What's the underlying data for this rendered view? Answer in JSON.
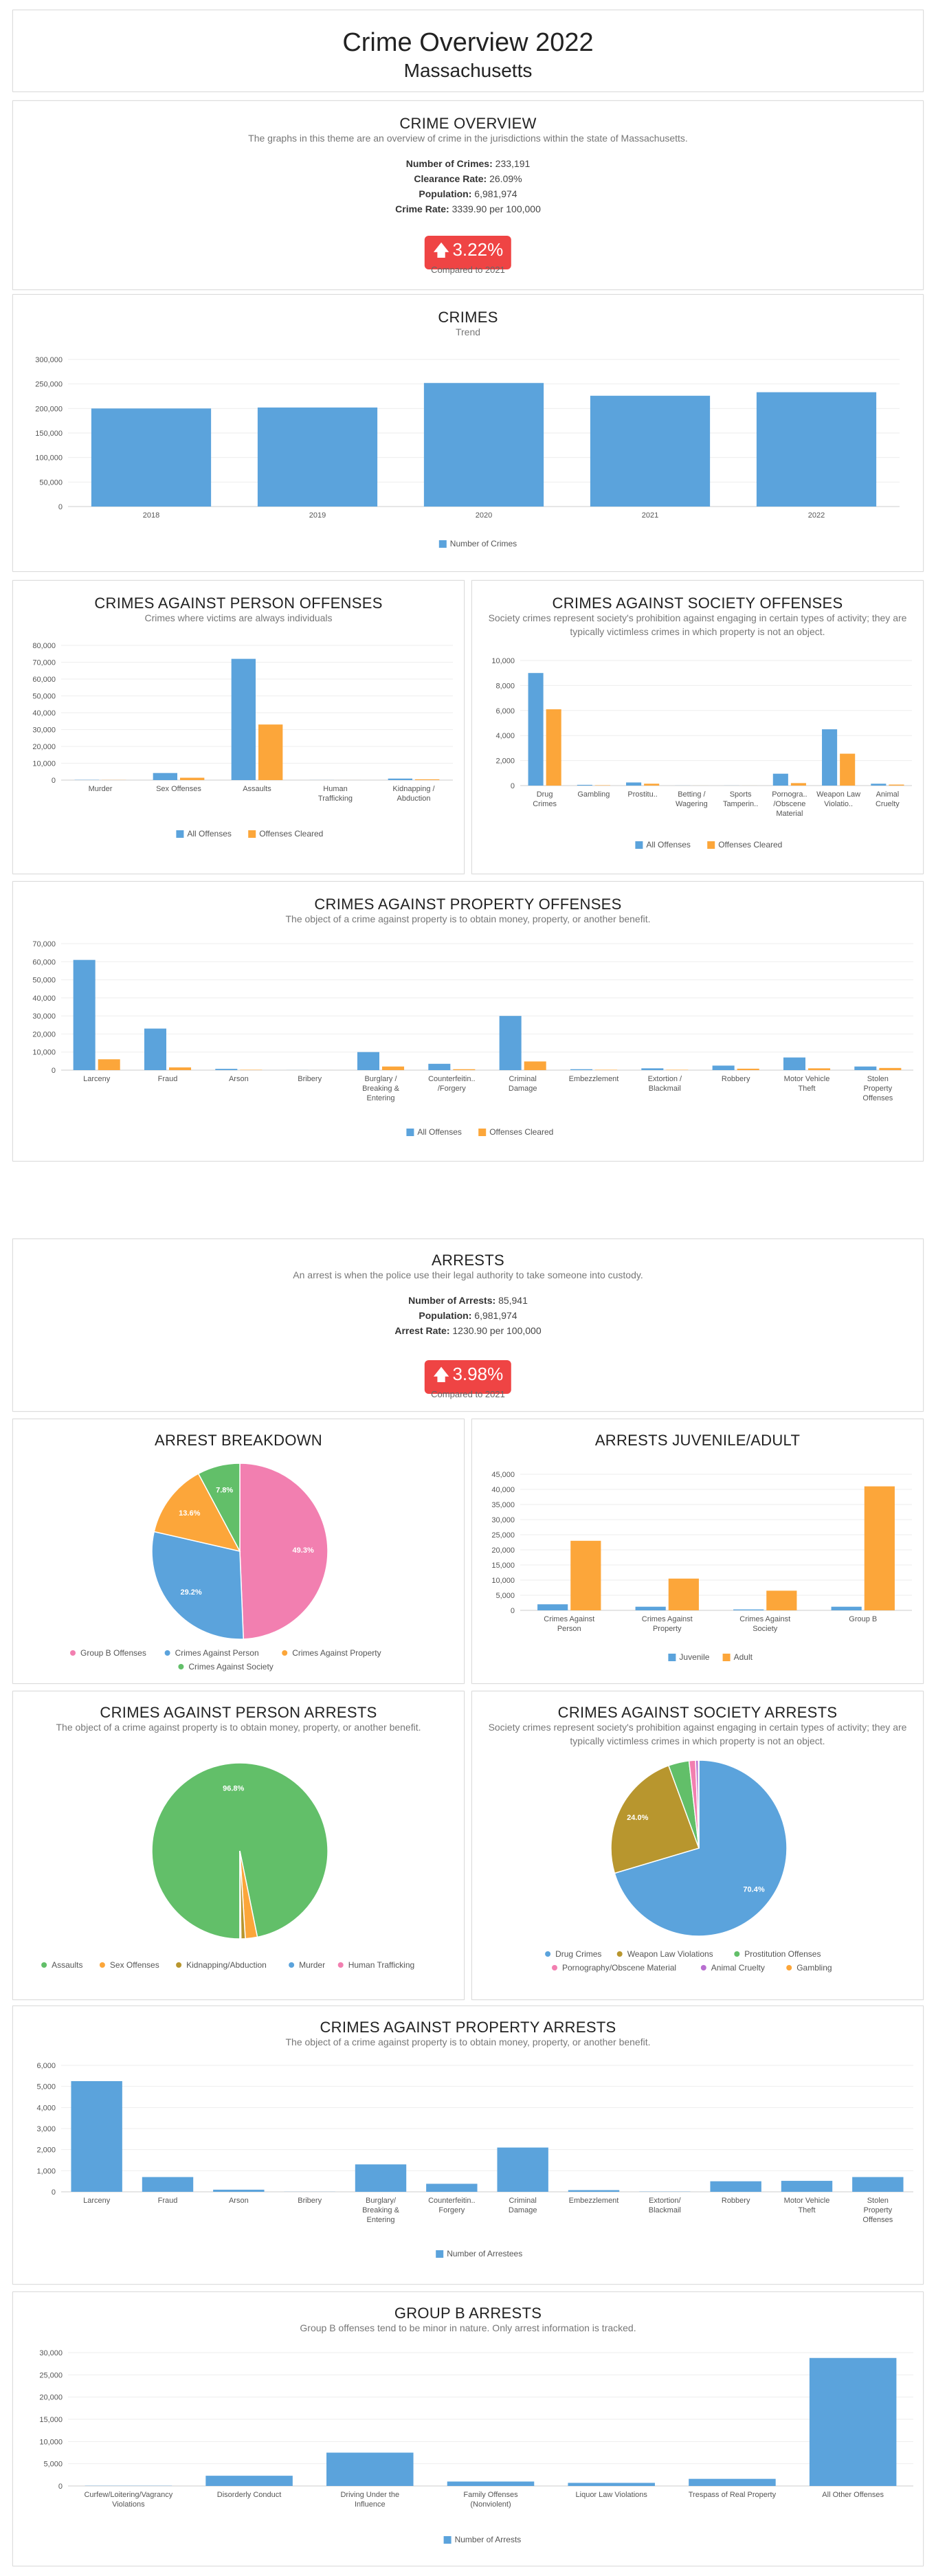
{
  "header": {
    "title": "Crime Overview 2022",
    "subtitle": "Massachusetts"
  },
  "overview": {
    "title": "CRIME OVERVIEW",
    "description": "The graphs in this theme are an overview of crime in the jurisdictions within the state of Massachusetts.",
    "stats": [
      {
        "label": "Number of Crimes:",
        "value": "233,191"
      },
      {
        "label": "Clearance Rate:",
        "value": "26.09%"
      },
      {
        "label": "Population:",
        "value": "6,981,974"
      },
      {
        "label": "Crime Rate:",
        "value": "3339.90 per 100,000"
      }
    ],
    "change": "3.22%",
    "compared": "Compared to 2021"
  },
  "arrests": {
    "title": "ARRESTS",
    "description": "An arrest is when the police use their legal authority to take someone into custody.",
    "stats": [
      {
        "label": "Number of Arrests:",
        "value": "85,941"
      },
      {
        "label": "Population:",
        "value": "6,981,974"
      },
      {
        "label": "Arrest Rate:",
        "value": "1230.90 per 100,000"
      }
    ],
    "change": "3.98%",
    "compared": "Compared to 2021"
  },
  "colors": {
    "blue": "#5ba3dc",
    "orange": "#fca63a",
    "pink": "#f27fb0",
    "green": "#62bf69",
    "olive": "#b8962e",
    "red": "#ef4444"
  },
  "chart_data": [
    {
      "id": "crimes",
      "type": "bar",
      "title": "CRIMES",
      "subtitle": "Trend",
      "categories": [
        "2018",
        "2019",
        "2020",
        "2021",
        "2022"
      ],
      "series": [
        {
          "name": "Number of Crimes",
          "values": [
            200000,
            202000,
            252000,
            226000,
            233191
          ]
        }
      ],
      "ylim": [
        0,
        300000
      ],
      "yticks": [
        0,
        50000,
        100000,
        150000,
        200000,
        250000,
        300000
      ],
      "ytick_labels": [
        "0",
        "50,000",
        "100,000",
        "150,000",
        "200,000",
        "250,000",
        "300,000"
      ]
    },
    {
      "id": "person_offenses",
      "type": "bar",
      "title": "CRIMES AGAINST PERSON OFFENSES",
      "subtitle": "Crimes where victims are always individuals",
      "categories": [
        "Murder",
        "Sex Offenses",
        "Assaults",
        "Human Trafficking",
        "Kidnapping / Abduction"
      ],
      "series": [
        {
          "name": "All Offenses",
          "values": [
            150,
            4200,
            72000,
            40,
            900
          ]
        },
        {
          "name": "Offenses Cleared",
          "values": [
            80,
            1400,
            33000,
            10,
            450
          ]
        }
      ],
      "ylim": [
        0,
        80000
      ],
      "yticks": [
        0,
        10000,
        20000,
        30000,
        40000,
        50000,
        60000,
        70000,
        80000
      ],
      "ytick_labels": [
        "0",
        "10,000",
        "20,000",
        "30,000",
        "40,000",
        "50,000",
        "60,000",
        "70,000",
        "80,000"
      ]
    },
    {
      "id": "society_offenses",
      "type": "bar",
      "title": "CRIMES AGAINST SOCIETY OFFENSES",
      "subtitle": "Society crimes represent society's prohibition against engaging in certain types of activity; they are typically victimless crimes in which property is not an object.",
      "categories": [
        "Drug Crimes",
        "Gambling",
        "Prostitu..",
        "Betting / Wagering",
        "Sports Tamperin..",
        "Pornogra.. /Obscene Material",
        "Weapon Law Violatio..",
        "Animal Cruelty"
      ],
      "series": [
        {
          "name": "All Offenses",
          "values": [
            9000,
            60,
            250,
            5,
            5,
            950,
            4500,
            150
          ]
        },
        {
          "name": "Offenses Cleared",
          "values": [
            6100,
            30,
            150,
            2,
            2,
            200,
            2550,
            80
          ]
        }
      ],
      "ylim": [
        0,
        10000
      ],
      "yticks": [
        0,
        2000,
        4000,
        6000,
        8000,
        10000
      ],
      "ytick_labels": [
        "0",
        "2,000",
        "4,000",
        "6,000",
        "8,000",
        "10,000"
      ]
    },
    {
      "id": "property_offenses",
      "type": "bar",
      "title": "CRIMES AGAINST PROPERTY OFFENSES",
      "subtitle": "The object of a crime against property is to obtain money, property, or another benefit.",
      "categories": [
        "Larceny",
        "Fraud",
        "Arson",
        "Bribery",
        "Burglary / Breaking & Entering",
        "Counterfeitin.. /Forgery",
        "Criminal Damage",
        "Embezzlement",
        "Extortion / Blackmail",
        "Robbery",
        "Motor Vehicle Theft",
        "Stolen Property Offenses"
      ],
      "series": [
        {
          "name": "All Offenses",
          "values": [
            61000,
            23000,
            700,
            30,
            10000,
            3500,
            30000,
            500,
            1000,
            2500,
            7000,
            2000
          ]
        },
        {
          "name": "Offenses Cleared",
          "values": [
            6000,
            1500,
            200,
            10,
            2000,
            500,
            4800,
            200,
            200,
            800,
            1000,
            1200
          ]
        }
      ],
      "ylim": [
        0,
        70000
      ],
      "yticks": [
        0,
        10000,
        20000,
        30000,
        40000,
        50000,
        60000,
        70000
      ],
      "ytick_labels": [
        "0",
        "10,000",
        "20,000",
        "30,000",
        "40,000",
        "50,000",
        "60,000",
        "70,000"
      ]
    },
    {
      "id": "arrest_breakdown",
      "type": "pie",
      "title": "ARREST BREAKDOWN",
      "slices": [
        {
          "name": "Group B Offenses",
          "value": 49.3,
          "label": "49.3%"
        },
        {
          "name": "Crimes Against Person",
          "value": 29.2,
          "label": "29.2%"
        },
        {
          "name": "Crimes Against Property",
          "value": 13.6,
          "label": "13.6%"
        },
        {
          "name": "Crimes Against Society",
          "value": 7.8,
          "label": "7.8%"
        }
      ]
    },
    {
      "id": "juvenile_adult",
      "type": "bar",
      "title": "ARRESTS JUVENILE/ADULT",
      "categories": [
        "Crimes Against Person",
        "Crimes Against Property",
        "Crimes Against Society",
        "Group B"
      ],
      "series": [
        {
          "name": "Juvenile",
          "values": [
            2000,
            1200,
            300,
            1200
          ]
        },
        {
          "name": "Adult",
          "values": [
            23000,
            10500,
            6500,
            41000
          ]
        }
      ],
      "ylim": [
        0,
        45000
      ],
      "yticks": [
        0,
        5000,
        10000,
        15000,
        20000,
        25000,
        30000,
        35000,
        40000,
        45000
      ],
      "ytick_labels": [
        "0",
        "5,000",
        "10,000",
        "15,000",
        "20,000",
        "25,000",
        "30,000",
        "35,000",
        "40,000",
        "45,000"
      ]
    },
    {
      "id": "person_arrests",
      "type": "pie",
      "title": "CRIMES AGAINST PERSON ARRESTS",
      "subtitle": "The object of a crime against property is to obtain money, property, or another benefit.",
      "slices": [
        {
          "name": "Assaults",
          "value": 96.8,
          "label": "96.8%"
        },
        {
          "name": "Sex Offenses",
          "value": 2.2,
          "label": ""
        },
        {
          "name": "Kidnapping/Abduction",
          "value": 0.8,
          "label": ""
        },
        {
          "name": "Murder",
          "value": 0.1,
          "label": ""
        },
        {
          "name": "Human Trafficking",
          "value": 0.1,
          "label": ""
        }
      ]
    },
    {
      "id": "society_arrests",
      "type": "pie",
      "title": "CRIMES AGAINST SOCIETY ARRESTS",
      "subtitle": "Society crimes represent society's prohibition against engaging in certain types of activity; they are typically victimless crimes in which property is not an object.",
      "slices": [
        {
          "name": "Drug Crimes",
          "value": 70.4,
          "label": "70.4%"
        },
        {
          "name": "Weapon Law Violations",
          "value": 24.0,
          "label": "24.0%"
        },
        {
          "name": "Prostitution Offenses",
          "value": 3.8,
          "label": ""
        },
        {
          "name": "Pornography/Obscene Material",
          "value": 1.2,
          "label": ""
        },
        {
          "name": "Animal Cruelty",
          "value": 0.5,
          "label": ""
        },
        {
          "name": "Gambling",
          "value": 0.1,
          "label": ""
        }
      ]
    },
    {
      "id": "property_arrests",
      "type": "bar",
      "title": "CRIMES AGAINST PROPERTY ARRESTS",
      "subtitle": "The object of a crime against property is to obtain money, property, or another benefit.",
      "categories": [
        "Larceny",
        "Fraud",
        "Arson",
        "Bribery",
        "Burglary/ Breaking & Entering",
        "Counterfeitin.. Forgery",
        "Criminal Damage",
        "Embezzlement",
        "Extortion/ Blackmail",
        "Robbery",
        "Motor Vehicle Theft",
        "Stolen Property Offenses"
      ],
      "series": [
        {
          "name": "Number of Arrestees",
          "values": [
            5250,
            700,
            100,
            5,
            1300,
            380,
            2100,
            80,
            10,
            500,
            520,
            700
          ]
        }
      ],
      "ylim": [
        0,
        6000
      ],
      "yticks": [
        0,
        1000,
        2000,
        3000,
        4000,
        5000,
        6000
      ],
      "ytick_labels": [
        "0",
        "1,000",
        "2,000",
        "3,000",
        "4,000",
        "5,000",
        "6,000"
      ]
    },
    {
      "id": "group_b",
      "type": "bar",
      "title": "GROUP B ARRESTS",
      "subtitle": "Group B offenses tend to be minor in nature. Only arrest information is tracked.",
      "categories": [
        "Curfew/Loitering/Vagrancy Violations",
        "Disorderly Conduct",
        "Driving Under the Influence",
        "Family Offenses (Nonviolent)",
        "Liquor Law Violations",
        "Trespass of Real Property",
        "All Other Offenses"
      ],
      "series": [
        {
          "name": "Number of Arrests",
          "values": [
            50,
            2300,
            7500,
            1000,
            700,
            1600,
            28800
          ]
        }
      ],
      "ylim": [
        0,
        30000
      ],
      "yticks": [
        0,
        5000,
        10000,
        15000,
        20000,
        25000,
        30000
      ],
      "ytick_labels": [
        "0",
        "5,000",
        "10,000",
        "15,000",
        "20,000",
        "25,000",
        "30,000"
      ]
    }
  ]
}
